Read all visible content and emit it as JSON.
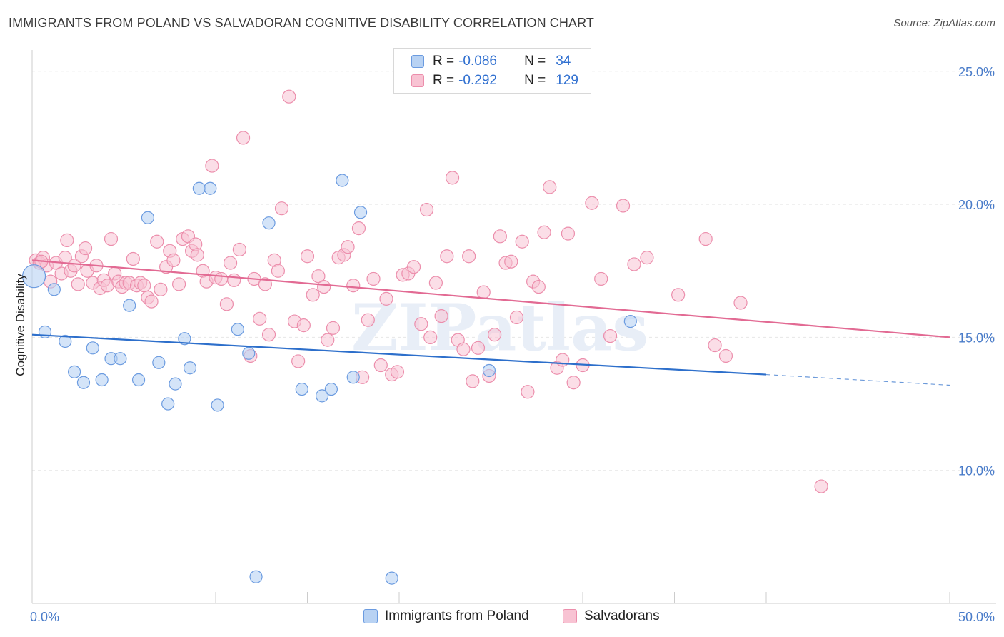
{
  "title": "IMMIGRANTS FROM POLAND VS SALVADORAN COGNITIVE DISABILITY CORRELATION CHART",
  "source": "Source: ZipAtlas.com",
  "watermark": "ZIPatlas",
  "legend": {
    "rows": [
      {
        "r_label": "R =",
        "r_value": "-0.086",
        "n_label": "N =",
        "n_value": "34"
      },
      {
        "r_label": "R =",
        "r_value": "-0.292",
        "n_label": "N =",
        "n_value": "129"
      }
    ]
  },
  "colors": {
    "poland_fill": "#b8d2f3",
    "poland_stroke": "#6b9be0",
    "poland_line": "#2d6fcb",
    "salv_fill": "#f8c3d3",
    "salv_stroke": "#ec8eac",
    "salv_line": "#e26a93",
    "grid": "#e6e6e6",
    "tick_text": "#4a7cc9"
  },
  "chart_data": {
    "type": "scatter",
    "title": "IMMIGRANTS FROM POLAND VS SALVADORAN COGNITIVE DISABILITY CORRELATION CHART",
    "xlabel": "",
    "ylabel": "Cognitive Disability",
    "xlim": [
      0,
      50
    ],
    "ylim": [
      5,
      25.8
    ],
    "x_tick_labels": [
      "0.0%",
      "50.0%"
    ],
    "y_ticks": [
      10,
      15,
      20,
      25
    ],
    "y_tick_labels": [
      "10.0%",
      "15.0%",
      "20.0%",
      "25.0%"
    ],
    "grid": true,
    "legend_position": "top-center",
    "series": [
      {
        "name": "Immigrants from Poland",
        "r": -0.086,
        "n": 34,
        "trend": {
          "x": [
            0,
            40
          ],
          "y": [
            15.1,
            13.6
          ],
          "dashed_to": [
            50,
            13.2
          ]
        },
        "points": [
          [
            0.1,
            17.3
          ],
          [
            0.7,
            15.2
          ],
          [
            1.2,
            16.8
          ],
          [
            1.8,
            14.85
          ],
          [
            2.3,
            13.7
          ],
          [
            2.8,
            13.3
          ],
          [
            3.3,
            14.6
          ],
          [
            3.8,
            13.4
          ],
          [
            4.3,
            14.2
          ],
          [
            4.8,
            14.2
          ],
          [
            5.3,
            16.2
          ],
          [
            5.8,
            13.4
          ],
          [
            6.3,
            19.5
          ],
          [
            6.9,
            14.05
          ],
          [
            7.4,
            12.5
          ],
          [
            7.8,
            13.25
          ],
          [
            8.3,
            14.95
          ],
          [
            8.6,
            13.85
          ],
          [
            9.1,
            20.6
          ],
          [
            9.7,
            20.6
          ],
          [
            10.1,
            12.45
          ],
          [
            11.2,
            15.3
          ],
          [
            11.8,
            14.4
          ],
          [
            12.2,
            6.0
          ],
          [
            12.9,
            19.3
          ],
          [
            14.7,
            13.05
          ],
          [
            15.8,
            12.8
          ],
          [
            16.3,
            13.05
          ],
          [
            16.9,
            20.9
          ],
          [
            17.5,
            13.5
          ],
          [
            17.9,
            19.7
          ],
          [
            19.6,
            5.95
          ],
          [
            24.9,
            13.75
          ],
          [
            32.6,
            15.6
          ]
        ]
      },
      {
        "name": "Salvadorans",
        "r": -0.292,
        "n": 129,
        "trend": {
          "x": [
            0,
            50
          ],
          "y": [
            17.9,
            15.0
          ]
        },
        "points": [
          [
            0.2,
            17.9
          ],
          [
            0.4,
            17.8
          ],
          [
            0.6,
            18.0
          ],
          [
            0.8,
            17.7
          ],
          [
            1.0,
            17.1
          ],
          [
            1.3,
            17.8
          ],
          [
            1.6,
            17.4
          ],
          [
            1.8,
            18.0
          ],
          [
            1.9,
            18.65
          ],
          [
            2.1,
            17.5
          ],
          [
            2.3,
            17.7
          ],
          [
            2.5,
            17.0
          ],
          [
            2.7,
            18.05
          ],
          [
            2.9,
            18.35
          ],
          [
            3.0,
            17.5
          ],
          [
            3.3,
            17.05
          ],
          [
            3.5,
            17.7
          ],
          [
            3.7,
            16.85
          ],
          [
            3.9,
            17.15
          ],
          [
            4.1,
            16.95
          ],
          [
            4.3,
            18.7
          ],
          [
            4.5,
            17.4
          ],
          [
            4.7,
            17.1
          ],
          [
            4.9,
            16.9
          ],
          [
            5.1,
            17.05
          ],
          [
            5.3,
            17.05
          ],
          [
            5.5,
            17.95
          ],
          [
            5.7,
            16.95
          ],
          [
            5.9,
            17.05
          ],
          [
            6.1,
            16.95
          ],
          [
            6.3,
            16.5
          ],
          [
            6.5,
            16.35
          ],
          [
            6.8,
            18.6
          ],
          [
            7.0,
            16.8
          ],
          [
            7.3,
            17.65
          ],
          [
            7.5,
            18.25
          ],
          [
            7.7,
            17.9
          ],
          [
            8.0,
            17.0
          ],
          [
            8.2,
            18.7
          ],
          [
            8.5,
            18.8
          ],
          [
            8.7,
            18.25
          ],
          [
            8.9,
            18.5
          ],
          [
            9.0,
            18.1
          ],
          [
            9.3,
            17.5
          ],
          [
            9.5,
            17.1
          ],
          [
            9.8,
            21.45
          ],
          [
            10.0,
            17.25
          ],
          [
            10.3,
            17.2
          ],
          [
            10.6,
            16.25
          ],
          [
            10.8,
            17.8
          ],
          [
            11.0,
            17.15
          ],
          [
            11.3,
            18.3
          ],
          [
            11.5,
            22.5
          ],
          [
            11.9,
            14.3
          ],
          [
            12.1,
            17.2
          ],
          [
            12.4,
            15.7
          ],
          [
            12.7,
            17.0
          ],
          [
            12.9,
            15.1
          ],
          [
            13.2,
            17.9
          ],
          [
            13.4,
            17.5
          ],
          [
            13.6,
            19.85
          ],
          [
            14.0,
            24.05
          ],
          [
            14.3,
            15.6
          ],
          [
            14.5,
            14.1
          ],
          [
            14.8,
            15.45
          ],
          [
            15.0,
            18.05
          ],
          [
            15.3,
            16.6
          ],
          [
            15.6,
            17.3
          ],
          [
            15.9,
            16.9
          ],
          [
            16.1,
            14.9
          ],
          [
            16.4,
            15.35
          ],
          [
            16.7,
            18.0
          ],
          [
            17.0,
            18.1
          ],
          [
            17.2,
            18.4
          ],
          [
            17.5,
            16.95
          ],
          [
            17.8,
            19.1
          ],
          [
            18.0,
            13.5
          ],
          [
            18.3,
            15.65
          ],
          [
            18.6,
            17.2
          ],
          [
            19.0,
            13.95
          ],
          [
            19.3,
            16.45
          ],
          [
            19.6,
            13.6
          ],
          [
            19.9,
            13.7
          ],
          [
            20.2,
            17.35
          ],
          [
            20.5,
            17.4
          ],
          [
            20.8,
            17.65
          ],
          [
            21.2,
            15.5
          ],
          [
            21.5,
            19.8
          ],
          [
            21.7,
            15.0
          ],
          [
            22.0,
            17.05
          ],
          [
            22.3,
            15.8
          ],
          [
            22.6,
            18.05
          ],
          [
            22.9,
            21.0
          ],
          [
            23.2,
            14.9
          ],
          [
            23.5,
            14.55
          ],
          [
            23.8,
            18.05
          ],
          [
            24.0,
            13.35
          ],
          [
            24.3,
            14.6
          ],
          [
            24.6,
            16.7
          ],
          [
            24.9,
            13.55
          ],
          [
            25.2,
            15.1
          ],
          [
            25.5,
            18.8
          ],
          [
            25.8,
            17.8
          ],
          [
            26.1,
            17.85
          ],
          [
            26.4,
            15.75
          ],
          [
            26.7,
            18.6
          ],
          [
            27.0,
            12.95
          ],
          [
            27.3,
            17.1
          ],
          [
            27.6,
            16.9
          ],
          [
            27.9,
            18.95
          ],
          [
            28.2,
            20.65
          ],
          [
            28.6,
            13.85
          ],
          [
            28.9,
            14.15
          ],
          [
            29.2,
            18.9
          ],
          [
            29.5,
            13.3
          ],
          [
            30.0,
            13.95
          ],
          [
            30.5,
            20.05
          ],
          [
            31.0,
            17.2
          ],
          [
            31.5,
            15.05
          ],
          [
            32.2,
            19.95
          ],
          [
            32.8,
            17.75
          ],
          [
            33.5,
            18.0
          ],
          [
            35.2,
            16.6
          ],
          [
            36.7,
            18.7
          ],
          [
            37.2,
            14.7
          ],
          [
            37.8,
            14.3
          ],
          [
            38.6,
            16.3
          ],
          [
            43.0,
            9.4
          ],
          [
            0.5,
            17.85
          ]
        ]
      }
    ]
  },
  "bottom_legend": [
    "Immigrants from Poland",
    "Salvadorans"
  ]
}
